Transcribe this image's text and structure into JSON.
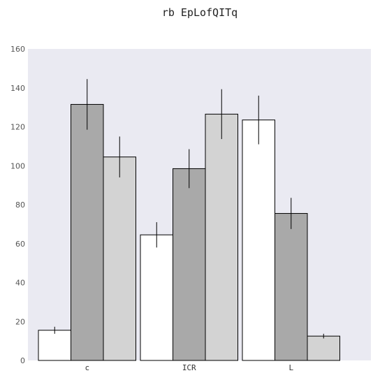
{
  "chart_data": {
    "type": "bar",
    "title": "rb EpLofQITq",
    "categories": [
      "c",
      "ICR",
      "L"
    ],
    "series": [
      {
        "values": [
          15.5,
          64.5,
          123.5
        ],
        "errors": [
          1.8,
          6.5,
          12.5
        ],
        "color": "#ffffff"
      },
      {
        "values": [
          131.5,
          98.5,
          75.5
        ],
        "errors": [
          13.0,
          10.0,
          8.0
        ],
        "color": "#a9a9a9"
      },
      {
        "values": [
          104.5,
          126.5,
          12.5
        ],
        "errors": [
          10.5,
          12.8,
          1.2
        ],
        "color": "#d3d3d3"
      }
    ],
    "ylim": [
      0,
      160
    ],
    "yticks": [
      0,
      20,
      40,
      60,
      80,
      100,
      120,
      140,
      160
    ],
    "xlabel": "",
    "ylabel": "",
    "grid": false,
    "background": "#eaeaf2"
  }
}
